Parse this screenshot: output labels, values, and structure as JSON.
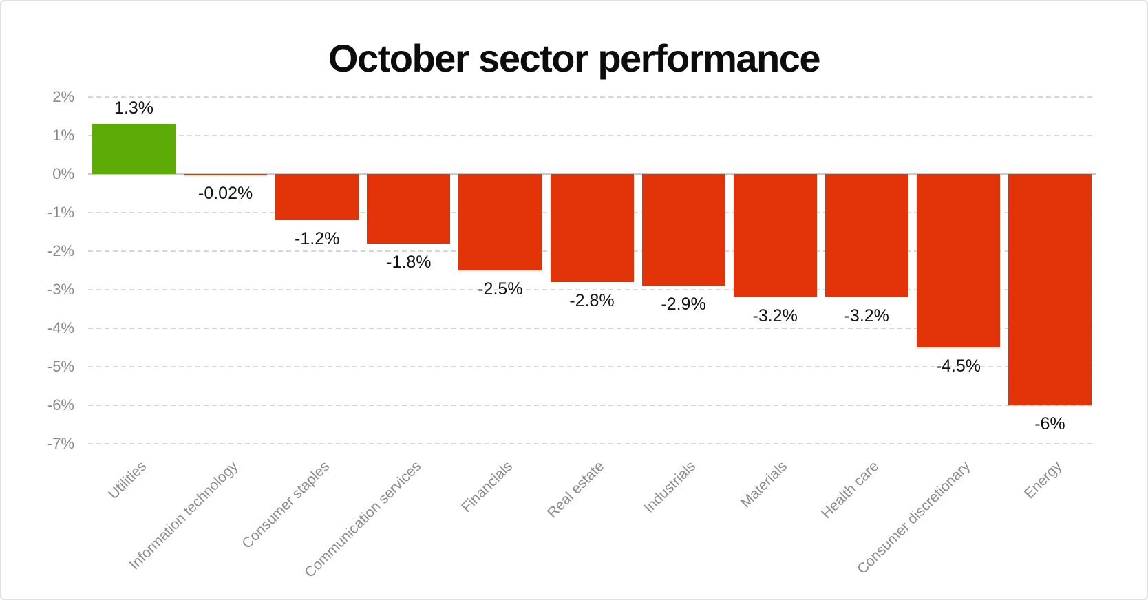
{
  "page": {
    "background": "#ffffff",
    "border_color": "#e0e0e0"
  },
  "chart_data": {
    "type": "bar",
    "title": "October sector performance",
    "categories": [
      "Utilities",
      "Information technology",
      "Consumer staples",
      "Communication services",
      "Financials",
      "Real estate",
      "Industrials",
      "Materials",
      "Health care",
      "Consumer discretionary",
      "Energy"
    ],
    "values": [
      1.3,
      -0.02,
      -1.2,
      -1.8,
      -2.5,
      -2.8,
      -2.9,
      -3.2,
      -3.2,
      -4.5,
      -6
    ],
    "bar_labels": [
      "1.3%",
      "-0.02%",
      "-1.2%",
      "-1.8%",
      "-2.5%",
      "-2.8%",
      "-2.9%",
      "-3.2%",
      "-3.2%",
      "-4.5%",
      "-6%"
    ],
    "xlabel": "",
    "ylabel": "",
    "ylim": [
      -7,
      2
    ],
    "yticks": [
      2,
      1,
      0,
      -1,
      -2,
      -3,
      -4,
      -5,
      -6,
      -7
    ],
    "ytick_labels": [
      "2%",
      "1%",
      "0%",
      "-1%",
      "-2%",
      "-3%",
      "-4%",
      "-5%",
      "-6%",
      "-7%"
    ],
    "grid": "horizontal-dashed",
    "legend": "none",
    "colors": {
      "positive": "#5dab07",
      "negative": "#e23408",
      "grid": "#d6d6d6",
      "zero_line": "#cbcbcb",
      "tick_text": "#8a8a8a",
      "category_text": "#8c8c8c",
      "bar_label_text": "#121212",
      "title_text": "#0c0c0c"
    }
  }
}
